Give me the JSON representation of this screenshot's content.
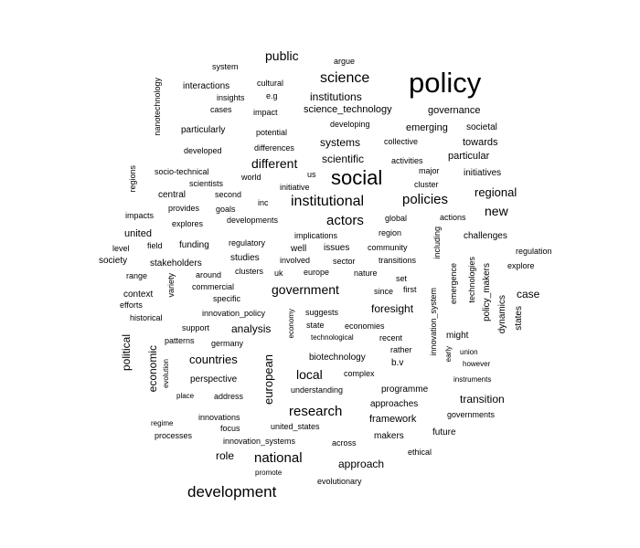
{
  "text_color": "#000000",
  "background_color": "#ffffff",
  "words": [
    "policy",
    "social",
    "science",
    "institutional",
    "actors",
    "policies",
    "development",
    "public",
    "institutions",
    "science_technology",
    "systems",
    "scientific",
    "different",
    "governance",
    "emerging",
    "societal",
    "towards",
    "particular",
    "regional",
    "new",
    "government",
    "national",
    "research",
    "local",
    "countries",
    "analysis",
    "foresight",
    "transition",
    "case",
    "approach",
    "role",
    "european",
    "economic",
    "political",
    "system",
    "argue",
    "cultural",
    "interactions",
    "insights",
    "e.g",
    "cases",
    "impact",
    "developing",
    "collective",
    "activities",
    "major",
    "us",
    "cluster",
    "initiatives",
    "particularly",
    "potential",
    "differences",
    "developed",
    "nanotechnology",
    "regions",
    "socio-technical",
    "world",
    "initiative",
    "scientists",
    "second",
    "central",
    "inc",
    "goals",
    "provides",
    "impacts",
    "explores",
    "developments",
    "global",
    "actions",
    "implications",
    "region",
    "challenges",
    "united",
    "field",
    "funding",
    "regulatory",
    "well",
    "issues",
    "community",
    "including",
    "level",
    "regulation",
    "society",
    "stakeholders",
    "studies",
    "involved",
    "sector",
    "transitions",
    "explore",
    "range",
    "around",
    "clusters",
    "uk",
    "europe",
    "nature",
    "commercial",
    "set",
    "technologies",
    "context",
    "efforts",
    "variety",
    "specific",
    "since",
    "first",
    "emergence",
    "policy_makers",
    "innovation_policy",
    "suggests",
    "innovation_system",
    "historical",
    "economy",
    "state",
    "economies",
    "dynamics",
    "states",
    "support",
    "technological",
    "recent",
    "might",
    "patterns",
    "germany",
    "rather",
    "union",
    "early",
    "biotechnology",
    "b.v",
    "however",
    "evolution",
    "perspective",
    "complex",
    "instruments",
    "place",
    "address",
    "understanding",
    "programme",
    "approaches",
    "governments",
    "regime",
    "innovations",
    "framework",
    "focus",
    "united_states",
    "processes",
    "future",
    "innovation_systems",
    "makers",
    "across",
    "ethical",
    "promote",
    "evolutionary"
  ]
}
